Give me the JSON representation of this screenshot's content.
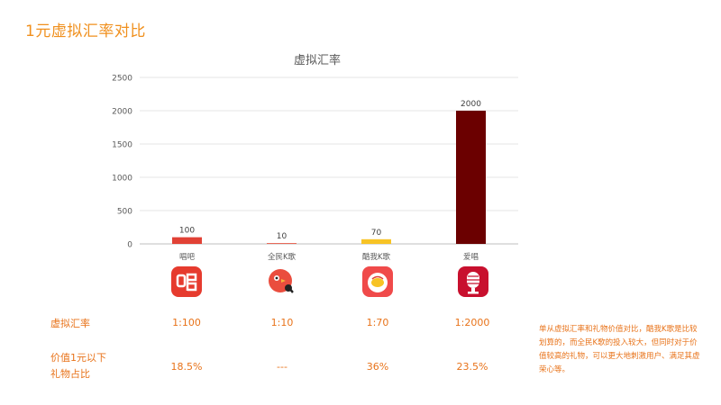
{
  "slide_title": "1元虚拟汇率对比",
  "chart_data": {
    "type": "bar",
    "title": "虚拟汇率",
    "categories": [
      "唱吧",
      "全民K歌",
      "酷我K歌",
      "爱唱"
    ],
    "values": [
      100,
      10,
      70,
      2000
    ],
    "data_labels": [
      "100",
      "10",
      "70",
      "2000"
    ],
    "colors": [
      "#e14135",
      "#e86a5a",
      "#f7c325",
      "#6b0000"
    ],
    "ylim": [
      0,
      2500
    ],
    "yticks": [
      0,
      500,
      1000,
      1500,
      2000,
      2500
    ],
    "grid": true,
    "xlabel": "",
    "ylabel": ""
  },
  "apps": [
    {
      "name": "唱吧",
      "icon": "changba-icon"
    },
    {
      "name": "全民K歌",
      "icon": "quanmin-kge-icon"
    },
    {
      "name": "酷我K歌",
      "icon": "kuwo-kge-icon"
    },
    {
      "name": "爱唱",
      "icon": "aichang-icon"
    }
  ],
  "table": {
    "rows": [
      {
        "label": "虚拟汇率",
        "values": [
          "1:100",
          "1:10",
          "1:70",
          "1:2000"
        ]
      },
      {
        "label_lines": [
          "价值1元以下",
          "礼物占比"
        ],
        "values": [
          "18.5%",
          "---",
          "36%",
          "23.5%"
        ]
      }
    ]
  },
  "note": "单从虚拟汇率和礼物价值对比，酷我K歌是比较划算的，而全民K歌的投入较大，但同时对于价值较高的礼物，可以更大地刺激用户、满足其虚荣心等。",
  "colors": {
    "accent": "#f0901e",
    "text_orange": "#e8731a"
  }
}
